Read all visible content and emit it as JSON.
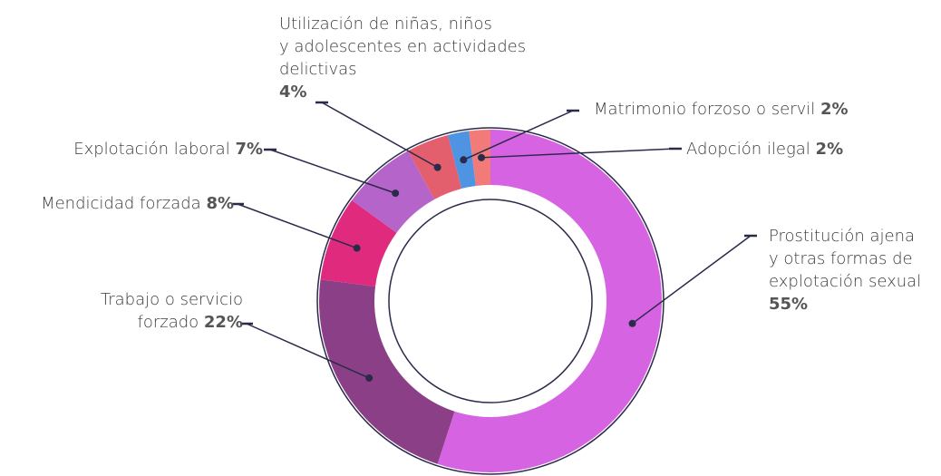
{
  "chart_data": {
    "type": "donut",
    "categories": [
      "Prostitución ajena\ny otras formas de\nexplotación sexual",
      "Trabajo o servicio\nforzado",
      "Mendicidad forzada",
      "Explotación laboral",
      "Utilización de niñas, niños\ny adolescentes en actividades\ndelictivas",
      "Matrimonio forzoso o servil",
      "Adopción ilegal"
    ],
    "values": [
      55,
      22,
      8,
      7,
      4,
      2,
      2
    ],
    "value_labels": [
      "55%",
      "22%",
      "8%",
      "7%",
      "4%",
      "2%",
      "2%"
    ],
    "colors": [
      "#d663e2",
      "#8a3f86",
      "#e02a7e",
      "#b564c9",
      "#e35f6e",
      "#4f93e3",
      "#f27a78"
    ]
  }
}
